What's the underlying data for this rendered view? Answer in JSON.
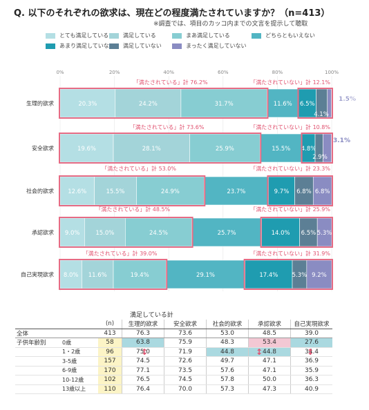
{
  "title": "Q. 以下のそれぞれの欲求は、現在どの程度満たされていますか？（n=413）",
  "subtitle": "※調査では、項目のカッコ内までの文言を提示して聴取",
  "chart_data": {
    "type": "bar",
    "stacked": true,
    "orientation": "horizontal",
    "categories": [
      "生理的欲求",
      "安全欲求",
      "社会的欲求",
      "承認欲求",
      "自己実現欲求"
    ],
    "xlim": [
      0,
      100
    ],
    "x_ticks": [
      "0%",
      "20%",
      "40%",
      "60%",
      "80%",
      "100%"
    ],
    "series": [
      {
        "name": "とても満足している",
        "color": "#b4dfe4",
        "values": [
          20.3,
          19.6,
          12.6,
          9.0,
          8.0
        ]
      },
      {
        "name": "満足している",
        "color": "#a3d4d9",
        "values": [
          24.2,
          28.1,
          15.5,
          15.0,
          11.6
        ]
      },
      {
        "name": "まあ満足している",
        "color": "#87cdd2",
        "values": [
          31.7,
          25.9,
          24.9,
          24.5,
          19.4
        ]
      },
      {
        "name": "どちらともいえない",
        "color": "#52b5c3",
        "values": [
          11.6,
          15.5,
          23.7,
          25.7,
          29.1
        ]
      },
      {
        "name": "あまり満足していない",
        "color": "#1f9cb0",
        "values": [
          6.5,
          4.8,
          9.7,
          14.0,
          17.4
        ]
      },
      {
        "name": "満足していない",
        "color": "#5c7f95",
        "values": [
          4.1,
          2.9,
          6.8,
          6.5,
          5.3
        ]
      },
      {
        "name": "まったく満足していない",
        "color": "#8a8cc2",
        "values": [
          1.5,
          3.1,
          6.8,
          5.3,
          9.2
        ]
      }
    ],
    "satisfied_totals": [
      "「満たされている」計 76.2%",
      "「満たされている」計 73.6%",
      "「満たされている」計 53.0%",
      "「満たされている」計 48.5%",
      "「満たされている」計 39.0%"
    ],
    "unsatisfied_totals": [
      "「満たされていない」計 12.1%",
      "「満たされていない」計 10.8%",
      "「満たされていない」計 23.3%",
      "「満たされていない」計 25.9%",
      "「満たされていない」計 31.9%"
    ],
    "outside_labels": [
      [
        "1.5%",
        "4.1%"
      ],
      [
        "3.1%",
        "2.9%"
      ]
    ]
  },
  "table": {
    "caption": "満足している計",
    "n_header": "(n)",
    "headers": [
      "生理的欲求",
      "安全欲求",
      "社会的欲求",
      "承認欲求",
      "自己実現欲求"
    ],
    "total": {
      "label": "全体",
      "n": "413",
      "values": [
        "76.3",
        "73.6",
        "53.0",
        "48.5",
        "39.0"
      ]
    },
    "group_label": "子供年齢別",
    "rows": [
      {
        "label": "0歳",
        "n": "58",
        "values": [
          "63.8",
          "75.9",
          "48.3",
          "53.4",
          "27.6"
        ]
      },
      {
        "label": "1・2歳",
        "n": "96",
        "values": [
          "75.0",
          "71.9",
          "44.8",
          "44.8",
          "34.4"
        ]
      },
      {
        "label": "3-5歳",
        "n": "157",
        "values": [
          "74.5",
          "72.6",
          "49.7",
          "47.1",
          "36.9"
        ]
      },
      {
        "label": "6-9歳",
        "n": "170",
        "values": [
          "77.1",
          "73.5",
          "57.6",
          "47.1",
          "35.9"
        ]
      },
      {
        "label": "10-12歳",
        "n": "102",
        "values": [
          "76.5",
          "74.5",
          "57.8",
          "50.0",
          "36.3"
        ]
      },
      {
        "label": "13歳以上",
        "n": "110",
        "values": [
          "76.4",
          "70.0",
          "57.3",
          "47.3",
          "40.9"
        ]
      }
    ],
    "highlight_colors": {
      "low": "#aad9e0",
      "high": "#f3c8d4",
      "n_fill": "#fcf4c6"
    }
  }
}
